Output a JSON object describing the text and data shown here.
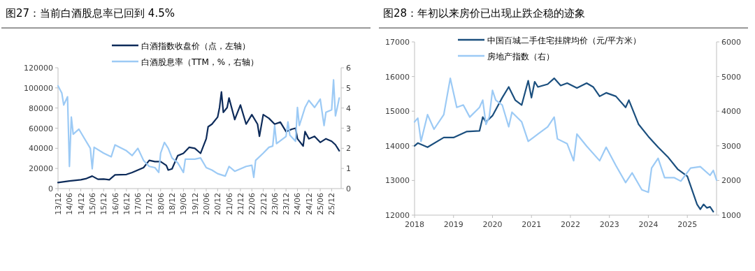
{
  "chart_data": [
    {
      "type": "line",
      "title": "图27：当前白酒股息率已回到 4.5%",
      "legend": "top",
      "xlim": [
        "2013-12",
        "2026-05"
      ],
      "xticks": [
        {
          "value": "2013-12",
          "label": "13/12"
        },
        {
          "value": "2014-06",
          "label": "14/06"
        },
        {
          "value": "2014-12",
          "label": "14/12"
        },
        {
          "value": "2015-06",
          "label": "15/06"
        },
        {
          "value": "2015-12",
          "label": "15/12"
        },
        {
          "value": "2016-06",
          "label": "16/06"
        },
        {
          "value": "2016-12",
          "label": "16/12"
        },
        {
          "value": "2017-06",
          "label": "17/06"
        },
        {
          "value": "2017-12",
          "label": "17/12"
        },
        {
          "value": "2018-06",
          "label": "18/06"
        },
        {
          "value": "2018-12",
          "label": "18/12"
        },
        {
          "value": "2019-06",
          "label": "19/06"
        },
        {
          "value": "2019-12",
          "label": "19/12"
        },
        {
          "value": "2020-06",
          "label": "20/06"
        },
        {
          "value": "2020-12",
          "label": "20/12"
        },
        {
          "value": "2021-06",
          "label": "21/06"
        },
        {
          "value": "2021-12",
          "label": "21/12"
        },
        {
          "value": "2022-06",
          "label": "22/06"
        },
        {
          "value": "2022-12",
          "label": "22/12"
        },
        {
          "value": "2023-06",
          "label": "23/06"
        },
        {
          "value": "2023-12",
          "label": "23/12"
        },
        {
          "value": "2024-06",
          "label": "24/06"
        },
        {
          "value": "2024-12",
          "label": "24/12"
        },
        {
          "value": "2025-06",
          "label": "25/06"
        },
        {
          "value": "2025-12",
          "label": "25/12"
        }
      ],
      "ylim": [
        0,
        120000
      ],
      "yticks": [
        0,
        20000,
        40000,
        60000,
        80000,
        100000,
        120000
      ],
      "y2lim": [
        0,
        6
      ],
      "y2ticks": [
        0,
        1,
        2,
        3,
        4,
        5,
        6
      ],
      "series": [
        {
          "name": "白酒指数收盘价（点，左轴）",
          "color": "#0d2b5a",
          "x": [
            "2013-12",
            "2014-06",
            "2014-12",
            "2015-03",
            "2015-06",
            "2015-09",
            "2015-12",
            "2016-03",
            "2016-06",
            "2016-12",
            "2017-03",
            "2017-06",
            "2017-09",
            "2017-12",
            "2018-03",
            "2018-06",
            "2018-09",
            "2018-10",
            "2018-12",
            "2019-03",
            "2019-06",
            "2019-09",
            "2019-12",
            "2020-03",
            "2020-06",
            "2020-07",
            "2020-09",
            "2020-12",
            "2021-01",
            "2021-02",
            "2021-03",
            "2021-05",
            "2021-06",
            "2021-09",
            "2021-10",
            "2021-12",
            "2022-03",
            "2022-06",
            "2022-09",
            "2022-10",
            "2022-12",
            "2023-03",
            "2023-06",
            "2023-09",
            "2023-12",
            "2024-03",
            "2024-05",
            "2024-06",
            "2024-09",
            "2024-10",
            "2024-12",
            "2025-03",
            "2025-06",
            "2025-09",
            "2025-12",
            "2026-02",
            "2026-04"
          ],
          "values": [
            6000,
            7600,
            8800,
            10000,
            12400,
            9300,
            9500,
            8800,
            13600,
            14000,
            16000,
            18400,
            20800,
            28000,
            26800,
            26800,
            23000,
            18400,
            19600,
            32700,
            35000,
            41000,
            40000,
            35000,
            49500,
            61400,
            64000,
            71000,
            80500,
            96000,
            75700,
            80500,
            90000,
            68600,
            73400,
            83000,
            64000,
            73400,
            64000,
            51900,
            73400,
            69800,
            64000,
            66000,
            56600,
            59000,
            60000,
            49500,
            42300,
            56600,
            49500,
            51900,
            45900,
            49500,
            47000,
            43500,
            37500
          ]
        },
        {
          "name": "白酒股息率（TTM，%，右轴）",
          "color": "#9ccaf5",
          "axis": "y2",
          "x": [
            "2013-12",
            "2014-02",
            "2014-03",
            "2014-05",
            "2014-06",
            "2014-07",
            "2014-08",
            "2014-11",
            "2015-02",
            "2015-05",
            "2015-06",
            "2015-07",
            "2015-12",
            "2016-04",
            "2016-06",
            "2016-12",
            "2017-03",
            "2017-06",
            "2017-09",
            "2017-12",
            "2018-03",
            "2018-05",
            "2018-06",
            "2018-08",
            "2018-10",
            "2018-12",
            "2019-03",
            "2019-06",
            "2019-07",
            "2019-12",
            "2020-03",
            "2020-06",
            "2020-09",
            "2020-12",
            "2021-02",
            "2021-04",
            "2021-06",
            "2021-09",
            "2021-12",
            "2022-03",
            "2022-06",
            "2022-07",
            "2022-08",
            "2022-12",
            "2023-03",
            "2023-05",
            "2023-06",
            "2023-07",
            "2023-12",
            "2024-01",
            "2024-02",
            "2024-05",
            "2024-06",
            "2024-07",
            "2024-10",
            "2024-12",
            "2025-03",
            "2025-06",
            "2025-08",
            "2025-09",
            "2025-12",
            "2026-01",
            "2026-02",
            "2026-03",
            "2026-04"
          ],
          "values": [
            5.1,
            4.74,
            4.15,
            4.56,
            1.1,
            3.55,
            2.7,
            2.95,
            2.47,
            2.0,
            0.98,
            2.05,
            1.76,
            1.58,
            2.17,
            1.88,
            1.64,
            2.0,
            1.4,
            1.1,
            1.04,
            0.8,
            1.76,
            2.29,
            2.0,
            1.52,
            1.28,
            0.8,
            1.46,
            1.46,
            1.52,
            1.04,
            0.92,
            0.74,
            0.68,
            0.62,
            1.1,
            0.86,
            0.98,
            1.1,
            1.16,
            0.56,
            1.4,
            1.76,
            2.05,
            2.11,
            3.13,
            2.23,
            2.59,
            3.31,
            2.65,
            2.35,
            4.03,
            3.13,
            4.03,
            4.38,
            4.03,
            4.44,
            3.13,
            3.79,
            3.91,
            5.4,
            3.61,
            4.03,
            4.5
          ]
        }
      ]
    },
    {
      "type": "line",
      "title": "图28：年初以来房价已出现止跌企稳的迹象",
      "legend": "top left",
      "xlim": [
        "2018-01",
        "2025-10"
      ],
      "xticks": [
        {
          "value": "2018-01",
          "label": "2018"
        },
        {
          "value": "2019-01",
          "label": "2019"
        },
        {
          "value": "2020-01",
          "label": "2020"
        },
        {
          "value": "2021-01",
          "label": "2021"
        },
        {
          "value": "2022-01",
          "label": "2022"
        },
        {
          "value": "2023-01",
          "label": "2023"
        },
        {
          "value": "2024-01",
          "label": "2024"
        },
        {
          "value": "2025-01",
          "label": "2025"
        }
      ],
      "ylim": [
        12000,
        17000
      ],
      "yticks": [
        12000,
        13000,
        14000,
        15000,
        16000,
        17000
      ],
      "y2lim": [
        1000,
        6000
      ],
      "y2ticks": [
        1000,
        2000,
        3000,
        4000,
        5000,
        6000
      ],
      "series": [
        {
          "name": "中国百城二手住宅挂牌均价（元/平方米）",
          "color": "#1b4f7e",
          "x": [
            "2018-01",
            "2018-02",
            "2018-05",
            "2018-10",
            "2019-01",
            "2019-05",
            "2019-09",
            "2019-10",
            "2019-11",
            "2020-01",
            "2020-04",
            "2020-06",
            "2020-08",
            "2020-10",
            "2020-12",
            "2021-01",
            "2021-02",
            "2021-03",
            "2021-06",
            "2021-08",
            "2021-10",
            "2021-12",
            "2022-03",
            "2022-06",
            "2022-08",
            "2022-10",
            "2022-12",
            "2023-03",
            "2023-06",
            "2023-07",
            "2023-10",
            "2024-01",
            "2024-04",
            "2024-07",
            "2024-10",
            "2025-01",
            "2025-04",
            "2025-05",
            "2025-06",
            "2025-07",
            "2025-08",
            "2025-09"
          ],
          "values": [
            14000,
            14080,
            13960,
            14240,
            14240,
            14410,
            14430,
            14830,
            14690,
            14870,
            15390,
            15700,
            15320,
            15180,
            15880,
            15390,
            15850,
            15700,
            15780,
            15950,
            15740,
            15810,
            15670,
            15810,
            15700,
            15430,
            15530,
            15430,
            15110,
            15320,
            14620,
            14270,
            13960,
            13680,
            13330,
            13120,
            12310,
            12170,
            12310,
            12210,
            12240,
            12100
          ]
        },
        {
          "name": "房地产指数（右）",
          "color": "#9ccaf5",
          "axis": "y2",
          "x": [
            "2018-01",
            "2018-02",
            "2018-03",
            "2018-05",
            "2018-07",
            "2018-10",
            "2018-12",
            "2019-02",
            "2019-04",
            "2019-06",
            "2019-09",
            "2019-10",
            "2019-11",
            "2019-12",
            "2020-01",
            "2020-02",
            "2020-04",
            "2020-06",
            "2020-07",
            "2020-10",
            "2020-12",
            "2021-03",
            "2021-06",
            "2021-08",
            "2021-09",
            "2021-12",
            "2022-02",
            "2022-03",
            "2022-06",
            "2022-10",
            "2022-12",
            "2023-03",
            "2023-06",
            "2023-08",
            "2023-11",
            "2024-01",
            "2024-02",
            "2024-04",
            "2024-06",
            "2024-09",
            "2024-11",
            "2025-02",
            "2025-05",
            "2025-08",
            "2025-09",
            "2025-10"
          ],
          "values": [
            3690,
            3800,
            3130,
            3900,
            3480,
            3900,
            4950,
            4110,
            4180,
            3830,
            4110,
            4320,
            3620,
            3830,
            4600,
            4320,
            4180,
            3550,
            3970,
            3690,
            3130,
            3340,
            3550,
            3830,
            3200,
            3060,
            2570,
            3340,
            2990,
            2570,
            2960,
            2430,
            1940,
            2220,
            1730,
            1660,
            2360,
            2640,
            2080,
            2080,
            1980,
            2360,
            2400,
            2150,
            2290,
            2010
          ]
        }
      ]
    }
  ]
}
